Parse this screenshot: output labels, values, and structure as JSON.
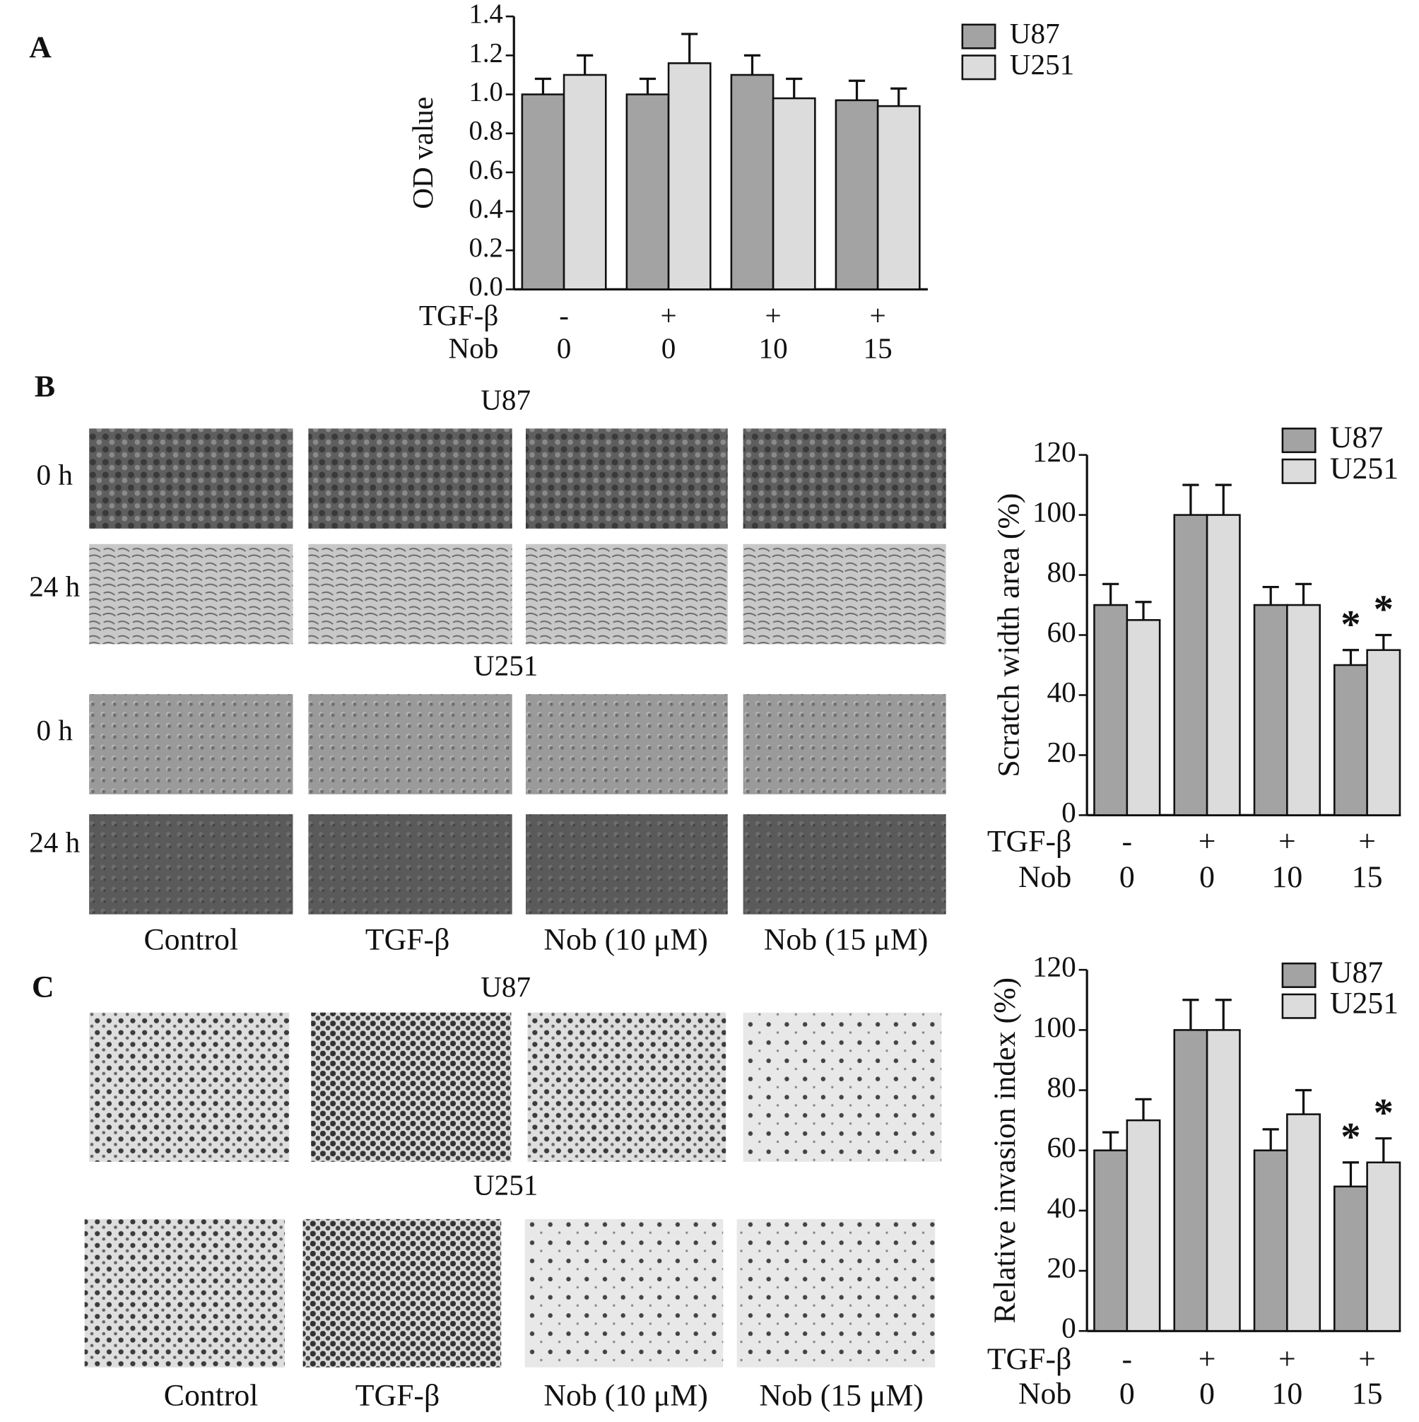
{
  "figure": {
    "panel_labels": [
      "A",
      "B",
      "C"
    ],
    "scratch": {
      "headers": [
        "U87",
        "U251"
      ],
      "row_labels": [
        "0 h",
        "24 h",
        "0 h",
        "24 h"
      ],
      "columns": [
        "Control",
        "TGF-β",
        "Nob (10 μM)",
        "Nob (15 μM)"
      ]
    },
    "invasion": {
      "headers": [
        "U87",
        "U251"
      ],
      "columns": [
        "Control",
        "TGF-β",
        "Nob (10 μM)",
        "Nob (15 μM)"
      ]
    }
  },
  "chart_data": [
    {
      "type": "bar",
      "ylabel": "OD value",
      "conditions": [
        {
          "name": "TGF-β",
          "labels": [
            "-",
            "+",
            "+",
            "+"
          ]
        },
        {
          "name": "Nob",
          "labels": [
            "0",
            "0",
            "10",
            "15"
          ]
        }
      ],
      "series": [
        {
          "name": "U87",
          "color": "#a3a3a3",
          "values": [
            1.0,
            1.0,
            1.1,
            0.97
          ],
          "errors": [
            0.08,
            0.08,
            0.1,
            0.1
          ]
        },
        {
          "name": "U251",
          "color": "#dcdcdc",
          "values": [
            1.1,
            1.16,
            0.98,
            0.94
          ],
          "errors": [
            0.1,
            0.15,
            0.1,
            0.09
          ]
        }
      ],
      "ylim": [
        0,
        1.4
      ],
      "yticks": [
        {
          "value": 0,
          "label": "0.0"
        },
        0.2,
        0.4,
        0.6,
        0.8,
        {
          "value": 1,
          "label": "1.0"
        },
        1.2,
        1.4
      ]
    },
    {
      "type": "bar",
      "ylabel": "Scratch width area (%)",
      "conditions": [
        {
          "name": "TGF-β",
          "labels": [
            "-",
            "+",
            "+",
            "+"
          ]
        },
        {
          "name": "Nob",
          "labels": [
            "0",
            "0",
            "10",
            "15"
          ]
        }
      ],
      "series": [
        {
          "name": "U87",
          "color": "#a3a3a3",
          "values": [
            70,
            100,
            70,
            50
          ],
          "errors": [
            7,
            10,
            6,
            5
          ],
          "markers": [
            null,
            null,
            null,
            "*"
          ]
        },
        {
          "name": "U251",
          "color": "#dcdcdc",
          "values": [
            65,
            100,
            70,
            55
          ],
          "errors": [
            6,
            10,
            7,
            5
          ],
          "markers": [
            null,
            null,
            null,
            "*"
          ]
        }
      ],
      "ylim": [
        0,
        120
      ],
      "yticks": [
        0,
        20,
        40,
        60,
        80,
        100,
        120
      ]
    },
    {
      "type": "bar",
      "ylabel": "Relative invasion index  (%)",
      "conditions": [
        {
          "name": "TGF-β",
          "labels": [
            "-",
            "+",
            "+",
            "+"
          ]
        },
        {
          "name": "Nob",
          "labels": [
            "0",
            "0",
            "10",
            "15"
          ]
        }
      ],
      "series": [
        {
          "name": "U87",
          "color": "#a3a3a3",
          "values": [
            60,
            100,
            60,
            48
          ],
          "errors": [
            6,
            10,
            7,
            8
          ],
          "markers": [
            null,
            null,
            null,
            "*"
          ]
        },
        {
          "name": "U251",
          "color": "#dcdcdc",
          "values": [
            70,
            100,
            72,
            56
          ],
          "errors": [
            7,
            10,
            8,
            8
          ],
          "markers": [
            null,
            null,
            null,
            "*"
          ]
        }
      ],
      "ylim": [
        0,
        120
      ],
      "yticks": [
        0,
        20,
        40,
        60,
        80,
        100,
        120
      ]
    }
  ]
}
